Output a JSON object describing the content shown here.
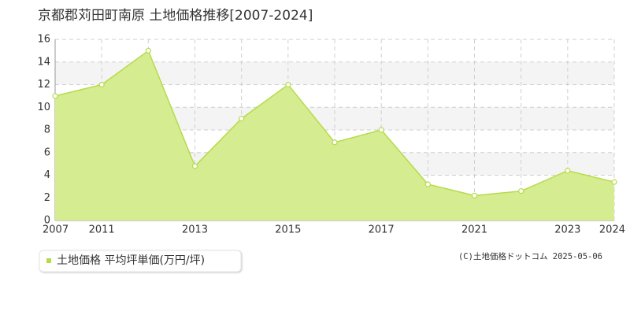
{
  "chart_data": {
    "type": "area",
    "title": "京都郡苅田町南原 土地価格推移[2007-2024]",
    "categories": [
      "2007",
      "2011",
      null,
      "2013",
      null,
      "2015",
      null,
      "2017",
      null,
      "2021",
      null,
      "2023",
      "2024"
    ],
    "series": [
      {
        "name": "土地価格 平均坪単価(万円/坪)",
        "color": "#b5db4a",
        "fill": "#d6ec90",
        "values": [
          11,
          12,
          15,
          4.8,
          9,
          12,
          6.9,
          8,
          3.2,
          2.2,
          2.6,
          4.4,
          3.4
        ]
      }
    ],
    "ylim": [
      0,
      16
    ],
    "yticks": [
      0,
      2,
      4,
      6,
      8,
      10,
      12,
      14,
      16
    ],
    "grid": true
  },
  "credit": "(C)土地価格ドットコム 2025-05-06"
}
